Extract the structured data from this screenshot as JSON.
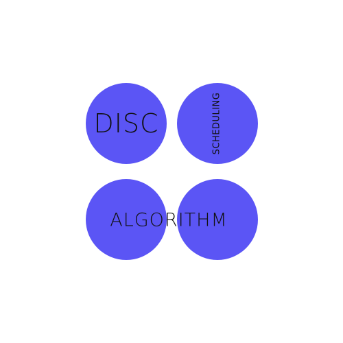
{
  "colors": {
    "background": "#ffffff",
    "circle_fill": "#5b55f5",
    "text": "#111111"
  },
  "words": {
    "disc": "DISC",
    "scheduling": "SCHEDULING",
    "algorithm": "ALGORITHM"
  }
}
